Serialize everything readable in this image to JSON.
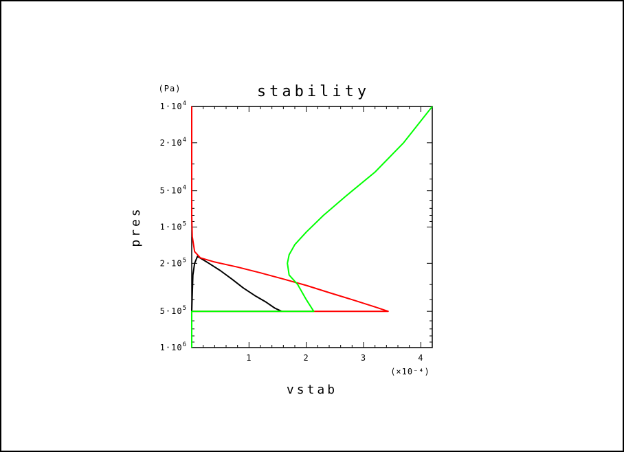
{
  "chart_data": {
    "type": "line",
    "title": "stability",
    "xlabel": "vstab",
    "ylabel": "pres",
    "y_unit": "(Pa)",
    "x_multiplier": "(×10⁻⁴)",
    "x_scale": "linear",
    "y_scale": "log",
    "y_inverted": true,
    "xlim": [
      0,
      4.2
    ],
    "ylim": [
      10000,
      1000000
    ],
    "x_ticks": [
      {
        "value": 1,
        "label": "1"
      },
      {
        "value": 2,
        "label": "2"
      },
      {
        "value": 3,
        "label": "3"
      },
      {
        "value": 4,
        "label": "4"
      }
    ],
    "y_ticks": [
      {
        "value": 10000,
        "mantissa": "1·10",
        "exp": "4"
      },
      {
        "value": 20000,
        "mantissa": "2·10",
        "exp": "4"
      },
      {
        "value": 50000,
        "mantissa": "5·10",
        "exp": "4"
      },
      {
        "value": 100000,
        "mantissa": "1·10",
        "exp": "5"
      },
      {
        "value": 200000,
        "mantissa": "2·10",
        "exp": "5"
      },
      {
        "value": 500000,
        "mantissa": "5·10",
        "exp": "5"
      },
      {
        "value": 1000000,
        "mantissa": "1·10",
        "exp": "6"
      }
    ],
    "grid": false,
    "series": [
      {
        "color": "#000000",
        "points": [
          [
            0,
            1000000
          ],
          [
            0,
            500000
          ],
          [
            0.02,
            250000
          ],
          [
            0.05,
            200000
          ],
          [
            0.1,
            175000
          ],
          [
            0.3,
            200000
          ],
          [
            0.5,
            230000
          ],
          [
            0.7,
            270000
          ],
          [
            0.9,
            320000
          ],
          [
            1.1,
            370000
          ],
          [
            1.3,
            420000
          ],
          [
            1.45,
            470000
          ],
          [
            1.57,
            500000
          ]
        ]
      },
      {
        "color": "#ff0000",
        "points": [
          [
            0,
            10000
          ],
          [
            0,
            80000
          ],
          [
            0.01,
            120000
          ],
          [
            0.05,
            160000
          ],
          [
            0.15,
            180000
          ],
          [
            0.4,
            195000
          ],
          [
            0.8,
            215000
          ],
          [
            1.2,
            240000
          ],
          [
            1.6,
            270000
          ],
          [
            2.0,
            305000
          ],
          [
            2.4,
            350000
          ],
          [
            2.8,
            400000
          ],
          [
            3.2,
            460000
          ],
          [
            3.43,
            500000
          ],
          [
            0,
            500000
          ]
        ]
      },
      {
        "color": "#00ff00",
        "points": [
          [
            0,
            1000000
          ],
          [
            0,
            500000
          ],
          [
            2.13,
            500000
          ],
          [
            2.0,
            400000
          ],
          [
            1.85,
            300000
          ],
          [
            1.7,
            250000
          ],
          [
            1.67,
            200000
          ],
          [
            1.7,
            170000
          ],
          [
            1.8,
            140000
          ],
          [
            2.0,
            110000
          ],
          [
            2.3,
            80000
          ],
          [
            2.7,
            55000
          ],
          [
            3.2,
            35000
          ],
          [
            3.7,
            20000
          ],
          [
            4.2,
            10000
          ]
        ]
      }
    ]
  }
}
